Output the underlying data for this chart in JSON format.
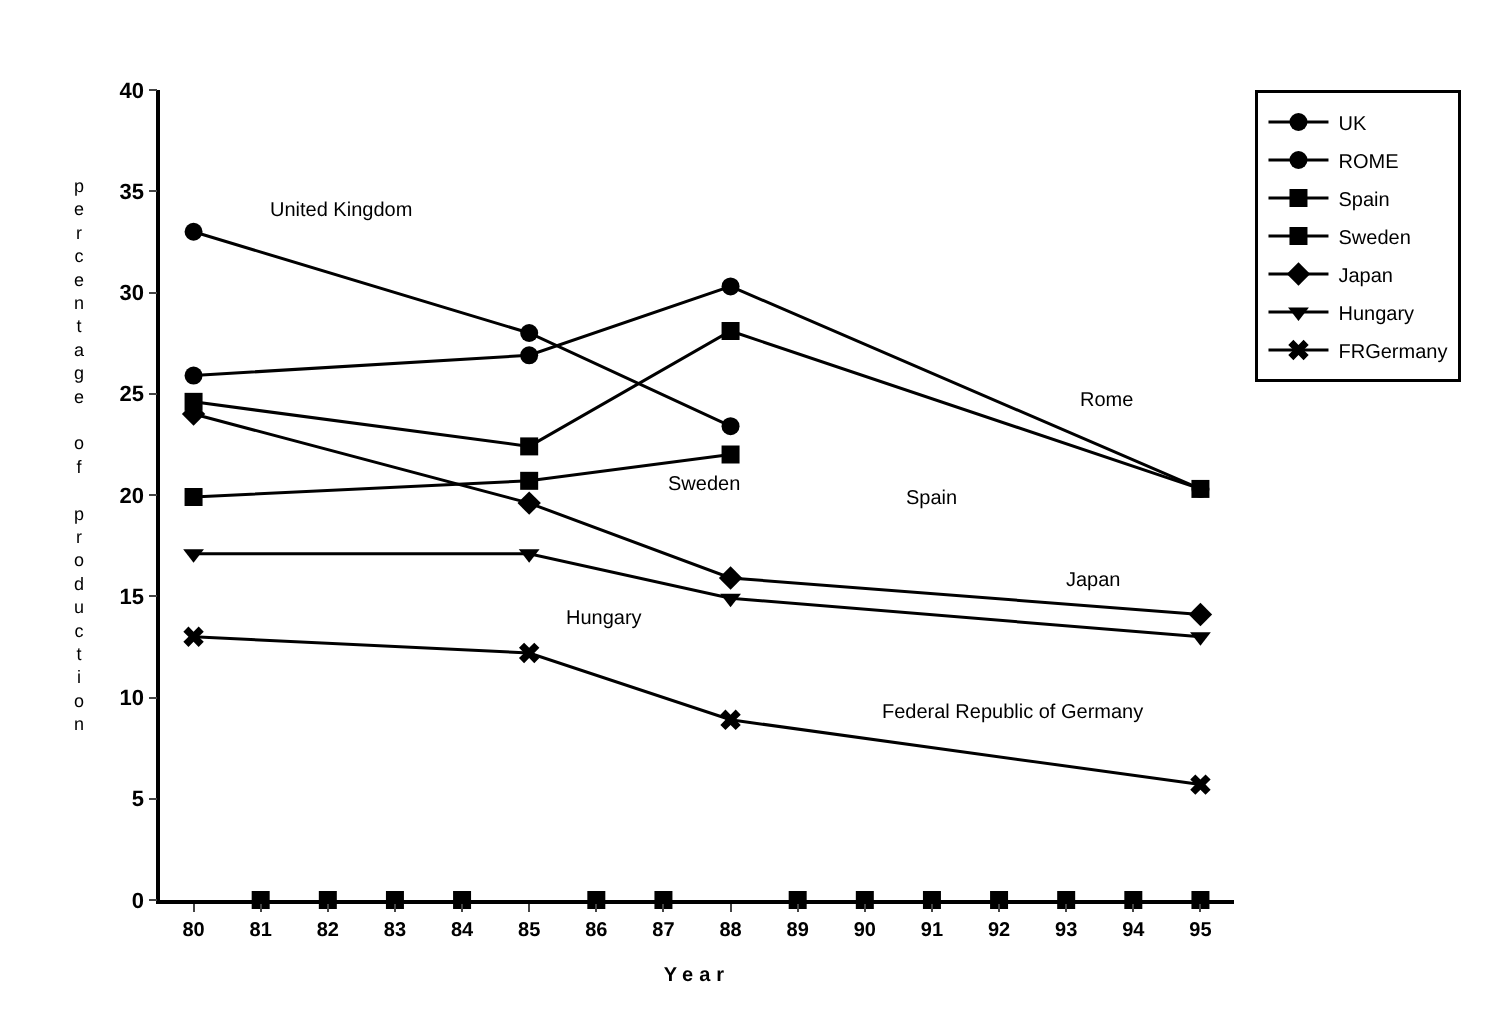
{
  "chart_data": {
    "type": "line",
    "xlabel": "Year",
    "ylabel": "percentage of production",
    "categories": [
      "80",
      "81",
      "82",
      "83",
      "84",
      "85",
      "86",
      "87",
      "88",
      "89",
      "90",
      "91",
      "92",
      "93",
      "94",
      "95"
    ],
    "ylim": [
      0,
      40
    ],
    "yticks": [
      0,
      5,
      10,
      15,
      20,
      25,
      30,
      35,
      40
    ],
    "grid": false,
    "legend": "top right",
    "line_style": "solid",
    "series": [
      {
        "name": "UK",
        "color": "#000000",
        "marker": "circle",
        "values": [
          33.0,
          null,
          null,
          null,
          null,
          28.0,
          null,
          null,
          23.4,
          null,
          null,
          null,
          null,
          null,
          null,
          null
        ]
      },
      {
        "name": "ROME",
        "color": "#000000",
        "marker": "circle",
        "values": [
          25.9,
          null,
          null,
          null,
          null,
          26.9,
          null,
          null,
          30.3,
          null,
          null,
          null,
          null,
          null,
          null,
          20.3
        ]
      },
      {
        "name": "Spain",
        "color": "#000000",
        "marker": "square",
        "values": [
          24.6,
          null,
          null,
          null,
          null,
          22.4,
          null,
          null,
          28.1,
          null,
          null,
          null,
          null,
          null,
          null,
          20.3
        ]
      },
      {
        "name": "Sweden",
        "color": "#000000",
        "marker": "square",
        "values": [
          19.9,
          null,
          null,
          null,
          null,
          20.7,
          null,
          null,
          22.0,
          null,
          null,
          null,
          null,
          null,
          null,
          null
        ]
      },
      {
        "name": "Japan",
        "color": "#000000",
        "marker": "diamond",
        "values": [
          24.0,
          null,
          null,
          null,
          null,
          19.6,
          null,
          null,
          15.9,
          null,
          null,
          null,
          null,
          null,
          null,
          14.1
        ]
      },
      {
        "name": "Hungary",
        "color": "#000000",
        "marker": "triangle",
        "values": [
          17.1,
          null,
          null,
          null,
          null,
          17.1,
          null,
          null,
          14.9,
          null,
          null,
          null,
          null,
          null,
          null,
          13.0
        ]
      },
      {
        "name": "FRGermany",
        "color": "#000000",
        "marker": "cross",
        "values": [
          13.0,
          null,
          null,
          null,
          null,
          12.2,
          null,
          null,
          8.9,
          null,
          null,
          null,
          null,
          null,
          null,
          5.7
        ]
      },
      {
        "type": "scatter",
        "color": "#000000",
        "marker": "square",
        "values": [
          null,
          0,
          0,
          0,
          0,
          null,
          0,
          0,
          null,
          0,
          0,
          0,
          0,
          0,
          0,
          0
        ]
      }
    ],
    "annotations": [
      "United Kingdom",
      "Sweden",
      "Spain",
      "Rome",
      "Japan",
      "Hungary",
      "Federal Republic of Germany"
    ]
  }
}
